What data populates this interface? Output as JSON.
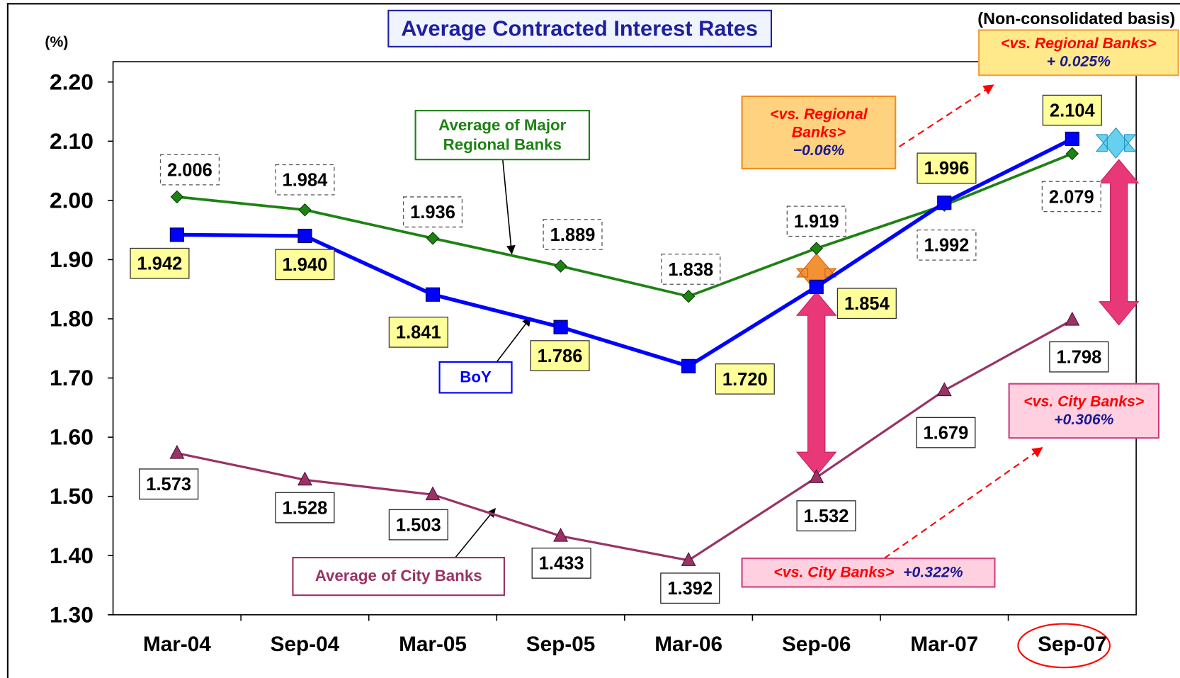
{
  "chart_data": {
    "type": "line",
    "title": "Average Contracted Interest Rates",
    "y_unit": "(%)",
    "subtitle": "(Non-consolidated basis)",
    "categories": [
      "Mar-04",
      "Sep-04",
      "Mar-05",
      "Sep-05",
      "Mar-06",
      "Sep-06",
      "Mar-07",
      "Sep-07"
    ],
    "series": [
      {
        "name": "Average of Major Regional Banks",
        "color": "#1e8214",
        "marker": "diamond",
        "values": [
          2.006,
          1.984,
          1.936,
          1.889,
          1.838,
          1.919,
          1.992,
          2.079
        ],
        "value_labels": [
          "2.006",
          "1.984",
          "1.936",
          "1.889",
          "1.838",
          "1.919",
          "1.992",
          "2.079"
        ]
      },
      {
        "name": "BoY",
        "color": "#0000ff",
        "marker": "square",
        "values": [
          1.942,
          1.94,
          1.841,
          1.786,
          1.72,
          1.854,
          1.996,
          2.104
        ],
        "value_labels": [
          "1.942",
          "1.940",
          "1.841",
          "1.786",
          "1.720",
          "1.854",
          "1.996",
          "2.104"
        ]
      },
      {
        "name": "Average of City Banks",
        "color": "#993366",
        "marker": "triangle",
        "values": [
          1.573,
          1.528,
          1.503,
          1.433,
          1.392,
          1.532,
          1.679,
          1.798
        ],
        "value_labels": [
          "1.573",
          "1.528",
          "1.503",
          "1.433",
          "1.392",
          "1.532",
          "1.679",
          "1.798"
        ]
      }
    ],
    "ylim": [
      1.3,
      2.2
    ],
    "yticks": [
      {
        "value": 1.3,
        "label": "1.30"
      },
      {
        "value": 1.4,
        "label": "1.40"
      },
      {
        "value": 1.5,
        "label": "1.50"
      },
      {
        "value": 1.6,
        "label": "1.60"
      },
      {
        "value": 1.7,
        "label": "1.70"
      },
      {
        "value": 1.8,
        "label": "1.80"
      },
      {
        "value": 1.9,
        "label": "1.90"
      },
      {
        "value": 2.0,
        "label": "2.00"
      },
      {
        "value": 2.1,
        "label": "2.10"
      },
      {
        "value": 2.2,
        "label": "2.20"
      }
    ],
    "grid": false,
    "annotations": [
      {
        "label": "<vs. Regional Banks>",
        "value": "+ 0.025%"
      },
      {
        "label": "<vs. Regional Banks>",
        "value": "−0.06%"
      },
      {
        "label": "<vs. City Banks>",
        "value": "+0.306%"
      },
      {
        "label": "<vs. City Banks>",
        "value": "+0.322%"
      }
    ]
  }
}
